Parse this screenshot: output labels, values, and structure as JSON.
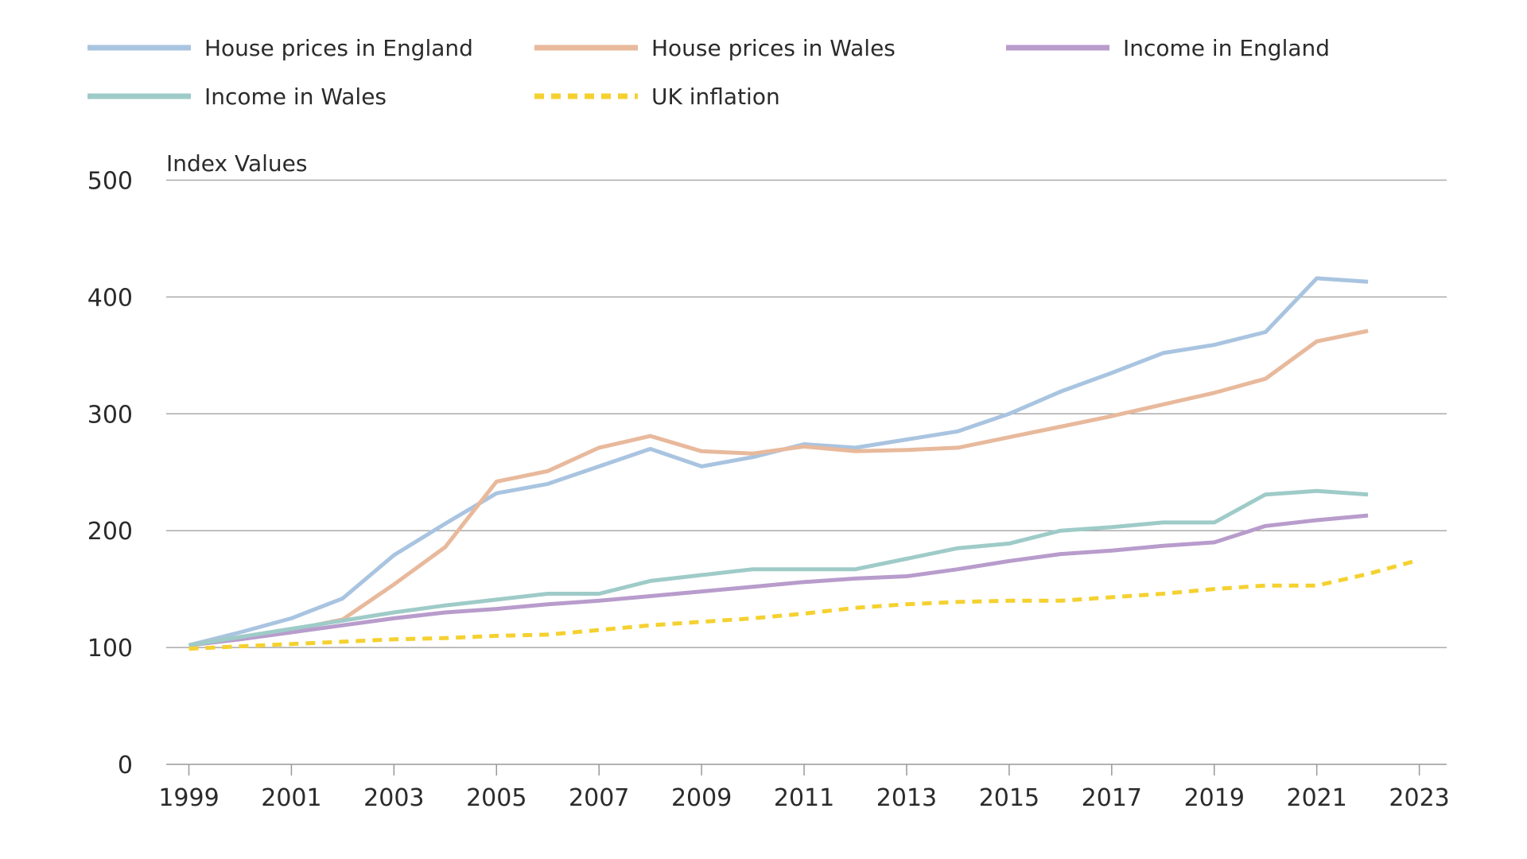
{
  "chart_data": {
    "type": "line",
    "title": "",
    "ylabel": "Index Values",
    "xlabel": "",
    "ylim": [
      0,
      500
    ],
    "yticks": [
      0,
      100,
      200,
      300,
      400,
      500
    ],
    "xlim": [
      1999,
      2023
    ],
    "xticks": [
      1999,
      2001,
      2003,
      2005,
      2007,
      2009,
      2011,
      2013,
      2015,
      2017,
      2019,
      2021,
      2023
    ],
    "grid": "horizontal",
    "legend": "top",
    "series": [
      {
        "name": "House prices in England",
        "color": "#a9c4e0",
        "style": "solid",
        "x": [
          1999,
          2000,
          2001,
          2002,
          2003,
          2004,
          2005,
          2006,
          2007,
          2008,
          2009,
          2010,
          2011,
          2012,
          2013,
          2014,
          2015,
          2016,
          2017,
          2018,
          2019,
          2020,
          2021,
          2022
        ],
        "values": [
          102,
          113,
          125,
          142,
          179,
          206,
          232,
          240,
          255,
          270,
          255,
          263,
          274,
          271,
          278,
          285,
          300,
          319,
          335,
          352,
          359,
          370,
          416,
          413
        ]
      },
      {
        "name": "House prices in Wales",
        "color": "#e8b99c",
        "style": "solid",
        "x": [
          1999,
          2000,
          2001,
          2002,
          2003,
          2004,
          2005,
          2006,
          2007,
          2008,
          2009,
          2010,
          2011,
          2012,
          2013,
          2014,
          2015,
          2016,
          2017,
          2018,
          2019,
          2020,
          2021,
          2022
        ],
        "values": [
          102,
          109,
          115,
          124,
          154,
          186,
          242,
          251,
          271,
          281,
          268,
          266,
          272,
          268,
          269,
          271,
          280,
          289,
          298,
          308,
          318,
          330,
          362,
          371
        ]
      },
      {
        "name": "Income in England",
        "color": "#b89ccc",
        "style": "solid",
        "x": [
          1999,
          2000,
          2001,
          2002,
          2003,
          2004,
          2005,
          2006,
          2007,
          2008,
          2009,
          2010,
          2011,
          2012,
          2013,
          2014,
          2015,
          2016,
          2017,
          2018,
          2019,
          2020,
          2021,
          2022
        ],
        "values": [
          102,
          107,
          113,
          119,
          125,
          130,
          133,
          137,
          140,
          144,
          148,
          152,
          156,
          159,
          161,
          167,
          174,
          180,
          183,
          187,
          190,
          204,
          209,
          213
        ]
      },
      {
        "name": "Income in Wales",
        "color": "#9ecbc8",
        "style": "solid",
        "x": [
          1999,
          2000,
          2001,
          2002,
          2003,
          2004,
          2005,
          2006,
          2007,
          2008,
          2009,
          2010,
          2011,
          2012,
          2013,
          2014,
          2015,
          2016,
          2017,
          2018,
          2019,
          2020,
          2021,
          2022
        ],
        "values": [
          102,
          109,
          116,
          123,
          130,
          136,
          141,
          146,
          146,
          157,
          162,
          167,
          167,
          167,
          176,
          185,
          189,
          200,
          203,
          207,
          207,
          231,
          234,
          231
        ]
      },
      {
        "name": "UK inflation",
        "color": "#f5d130",
        "style": "dotted",
        "x": [
          1999,
          2000,
          2001,
          2002,
          2003,
          2004,
          2005,
          2006,
          2007,
          2008,
          2009,
          2010,
          2011,
          2012,
          2013,
          2014,
          2015,
          2016,
          2017,
          2018,
          2019,
          2020,
          2021,
          2022,
          2023
        ],
        "values": [
          99,
          101,
          103,
          105,
          107,
          108,
          110,
          111,
          115,
          119,
          122,
          125,
          129,
          134,
          137,
          139,
          140,
          140,
          143,
          146,
          150,
          153,
          153,
          163,
          175
        ]
      }
    ]
  }
}
